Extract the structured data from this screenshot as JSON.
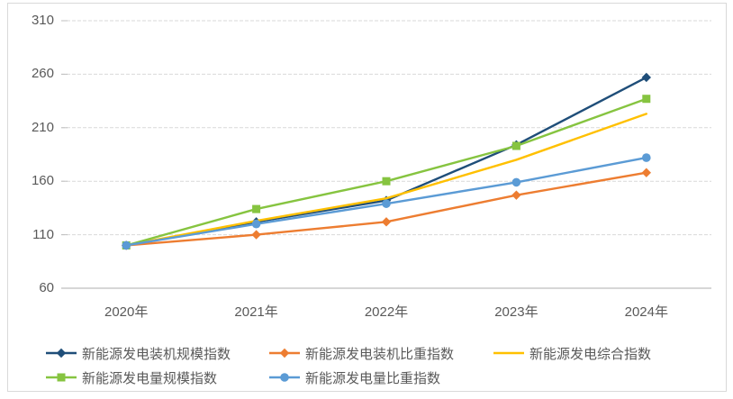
{
  "chart_data": {
    "type": "line",
    "title": "",
    "xlabel": "",
    "ylabel": "",
    "categories": [
      "2020年",
      "2021年",
      "2022年",
      "2023年",
      "2024年"
    ],
    "series": [
      {
        "name": "新能源发电装机规模指数",
        "color": "#1F4E79",
        "marker": "diamond",
        "values": [
          100,
          122,
          142,
          194,
          257
        ]
      },
      {
        "name": "新能源发电装机比重指数",
        "color": "#ED7D31",
        "marker": "diamond",
        "values": [
          100,
          110,
          122,
          147,
          168
        ]
      },
      {
        "name": "新能源发电综合指数",
        "color": "#FFC000",
        "marker": "none",
        "values": [
          100,
          123,
          144,
          180,
          223
        ]
      },
      {
        "name": "新能源发电量规模指数",
        "color": "#86C440",
        "marker": "square",
        "values": [
          100,
          134,
          160,
          193,
          237
        ]
      },
      {
        "name": "新能源发电量比重指数",
        "color": "#5B9BD5",
        "marker": "circle",
        "values": [
          100,
          120,
          139,
          159,
          182
        ]
      }
    ],
    "ylim": [
      60,
      310
    ],
    "yticks": [
      60,
      110,
      160,
      210,
      260,
      310
    ],
    "grid": "horizontal-dashed",
    "legend_position": "bottom",
    "legend_rows": [
      [
        0,
        1,
        2
      ],
      [
        3,
        4
      ]
    ]
  },
  "style_colors": {
    "axis_text": "#595959",
    "gridline": "#D9D9D9",
    "axis_line": "#BFBFBF",
    "chart_border": "#D9D9D9",
    "background": "#FFFFFF"
  }
}
